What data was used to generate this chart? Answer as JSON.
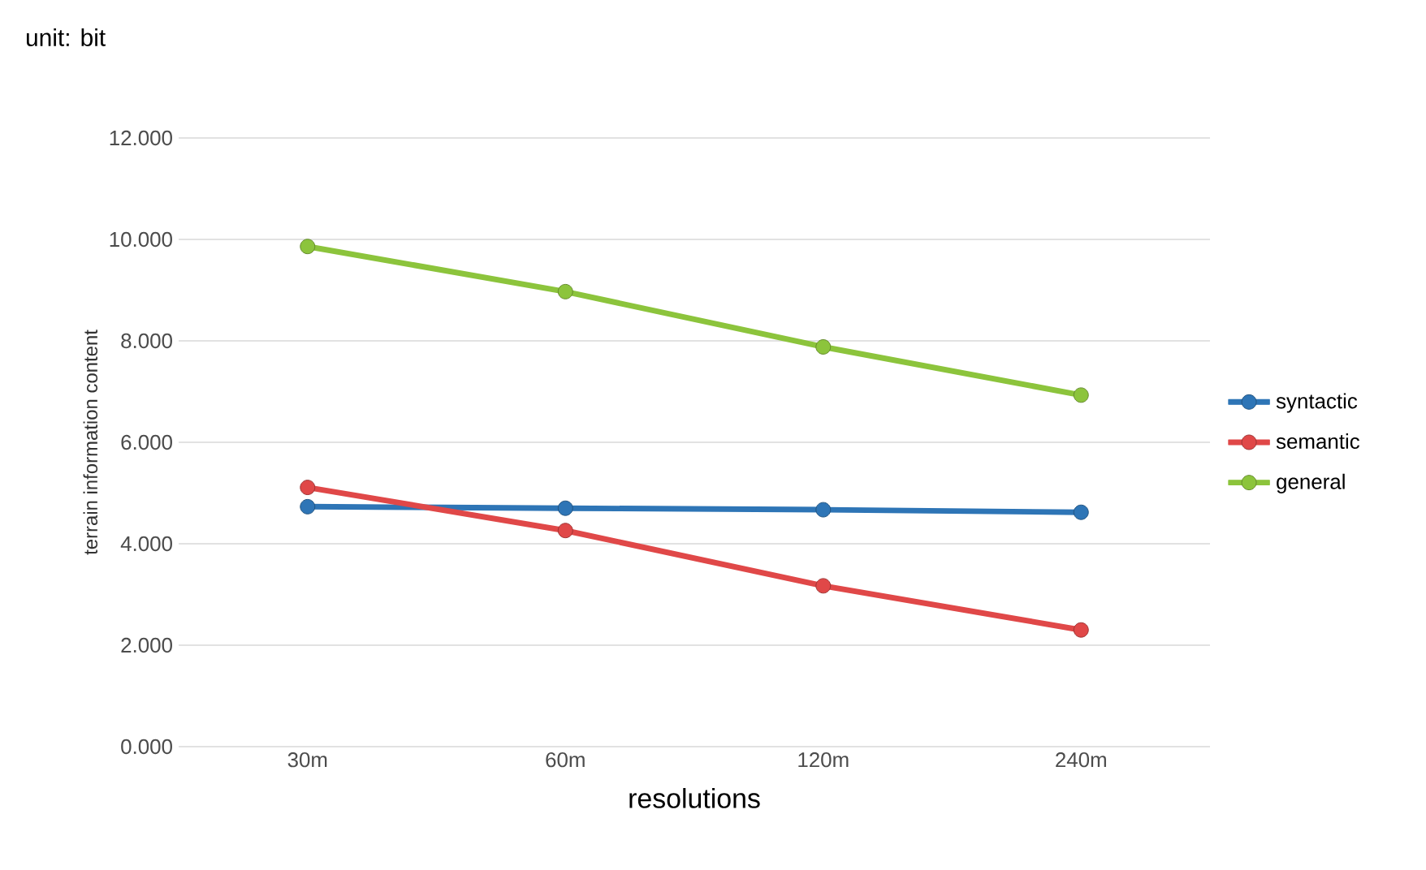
{
  "chart_data": {
    "type": "line",
    "annotations": [
      "unit: bit"
    ],
    "xlabel": "resolutions",
    "ylabel": "terrain information content",
    "categories": [
      "30m",
      "60m",
      "120m",
      "240m"
    ],
    "series": [
      {
        "name": "syntactic",
        "color": "#2e75b6",
        "values": [
          4.73,
          4.7,
          4.67,
          4.62
        ]
      },
      {
        "name": "semantic",
        "color": "#e04848",
        "values": [
          5.11,
          4.26,
          3.17,
          2.3
        ]
      },
      {
        "name": "general",
        "color": "#8cc43c",
        "values": [
          9.86,
          8.97,
          7.88,
          6.93
        ]
      }
    ],
    "ylim": [
      0,
      12
    ],
    "yticks": [
      {
        "value": 0,
        "label": "0.000"
      },
      {
        "value": 2,
        "label": "2.000"
      },
      {
        "value": 4,
        "label": "4.000"
      },
      {
        "value": 6,
        "label": "6.000"
      },
      {
        "value": 8,
        "label": "8.000"
      },
      {
        "value": 10,
        "label": "10.000"
      },
      {
        "value": 12,
        "label": "12.000"
      }
    ],
    "grid": "y",
    "legend": "right",
    "marker": "circle"
  }
}
